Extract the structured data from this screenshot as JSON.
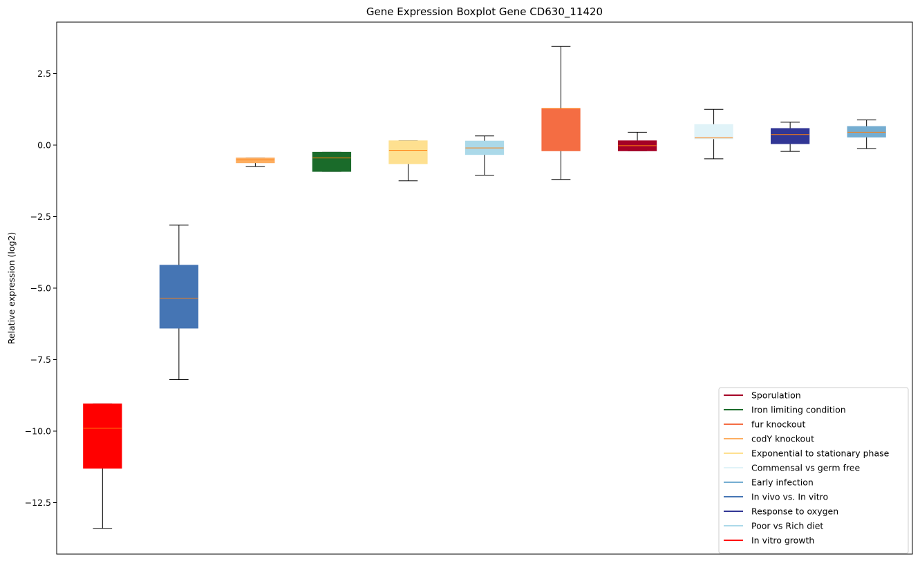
{
  "chart_data": {
    "type": "box",
    "title": "Gene Expression Boxplot Gene CD630_11420",
    "xlabel": "",
    "ylabel": "Relative expression (log2)",
    "ylim": [
      -14.3,
      4.3
    ],
    "yticks": [
      2.5,
      0.0,
      -2.5,
      -5.0,
      -7.5,
      -10.0,
      -12.5
    ],
    "ytick_labels": [
      "2.5",
      "0.0",
      "−2.5",
      "−5.0",
      "−7.5",
      "−10.0",
      "−12.5"
    ],
    "grid": false,
    "legend_position": "lower-right",
    "series": [
      {
        "name": "In vitro growth",
        "color": "#ff0000",
        "min": -13.4,
        "q1": -11.3,
        "median": -9.9,
        "q3": -9.05,
        "max": -9.05
      },
      {
        "name": "In vivo vs. In vitro",
        "color": "#4575b4",
        "min": -8.2,
        "q1": -6.4,
        "median": -5.35,
        "q3": -4.2,
        "max": -2.8
      },
      {
        "name": "codY knockout",
        "color": "#fdae61",
        "min": -0.75,
        "q1": -0.62,
        "median": -0.52,
        "q3": -0.45,
        "max": -0.45
      },
      {
        "name": "Iron limiting condition",
        "color": "#1a6b2a",
        "min": -0.92,
        "q1": -0.92,
        "median": -0.45,
        "q3": -0.25,
        "max": -0.25
      },
      {
        "name": "Exponential to stationary phase",
        "color": "#fee090",
        "min": -1.25,
        "q1": -0.65,
        "median": -0.18,
        "q3": 0.15,
        "max": 0.15
      },
      {
        "name": "Poor vs Rich diet",
        "color": "#abd9e9",
        "min": -1.05,
        "q1": -0.33,
        "median": -0.1,
        "q3": 0.14,
        "max": 0.32
      },
      {
        "name": "fur knockout",
        "color": "#f46d43",
        "min": -1.2,
        "q1": -0.2,
        "median": 1.28,
        "q3": 1.28,
        "max": 3.45
      },
      {
        "name": "Sporulation",
        "color": "#a50026",
        "min": -0.2,
        "q1": -0.2,
        "median": -0.02,
        "q3": 0.15,
        "max": 0.45
      },
      {
        "name": "Commensal vs germ free",
        "color": "#e0f3f8",
        "min": -0.48,
        "q1": 0.22,
        "median": 0.25,
        "q3": 0.72,
        "max": 1.25
      },
      {
        "name": "Response to oxygen",
        "color": "#313695",
        "min": -0.22,
        "q1": 0.05,
        "median": 0.37,
        "q3": 0.58,
        "max": 0.8
      },
      {
        "name": "Early infection",
        "color": "#74add1",
        "min": -0.12,
        "q1": 0.28,
        "median": 0.45,
        "q3": 0.65,
        "max": 0.88
      }
    ],
    "median_color": "#ff7f0e",
    "legend": [
      {
        "label": "Sporulation",
        "color": "#a50026"
      },
      {
        "label": "Iron limiting condition",
        "color": "#1a6b2a"
      },
      {
        "label": "fur knockout",
        "color": "#f46d43"
      },
      {
        "label": "codY knockout",
        "color": "#fdae61"
      },
      {
        "label": "Exponential to stationary phase",
        "color": "#fee090"
      },
      {
        "label": "Commensal vs germ free",
        "color": "#e0f3f8"
      },
      {
        "label": "Early infection",
        "color": "#74add1"
      },
      {
        "label": "In vivo vs. In vitro",
        "color": "#4575b4"
      },
      {
        "label": "Response to oxygen",
        "color": "#313695"
      },
      {
        "label": "Poor vs Rich diet",
        "color": "#abd9e9"
      },
      {
        "label": "In vitro growth",
        "color": "#ff0000"
      }
    ]
  }
}
